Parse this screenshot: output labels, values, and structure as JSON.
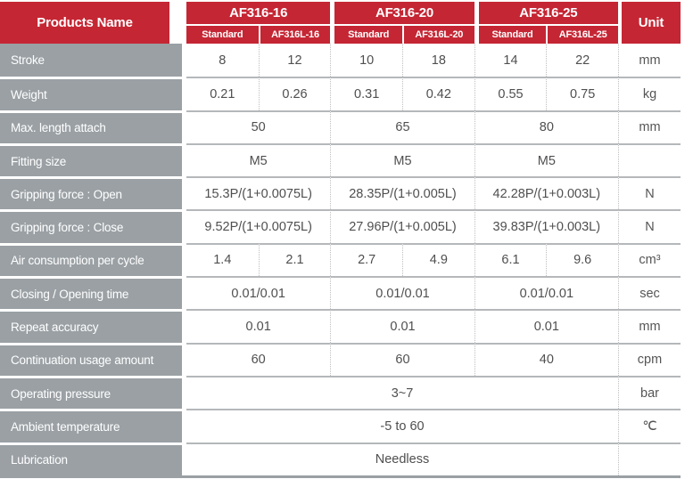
{
  "header": {
    "products_name": "Products Name",
    "unit": "Unit",
    "groups": [
      {
        "label": "AF316-16",
        "sub": [
          "Standard",
          "AF316L-16"
        ]
      },
      {
        "label": "AF316-20",
        "sub": [
          "Standard",
          "AF316L-20"
        ]
      },
      {
        "label": "AF316-25",
        "sub": [
          "Standard",
          "AF316L-25"
        ]
      }
    ]
  },
  "rows": [
    {
      "label": "Stroke",
      "span": "each",
      "values": [
        "8",
        "12",
        "10",
        "18",
        "14",
        "22"
      ],
      "unit": "mm"
    },
    {
      "label": "Weight",
      "span": "each",
      "values": [
        "0.21",
        "0.26",
        "0.31",
        "0.42",
        "0.55",
        "0.75"
      ],
      "unit": "kg"
    },
    {
      "label": "Max. length attach",
      "span": "group",
      "values": [
        "50",
        "65",
        "80"
      ],
      "unit": "mm"
    },
    {
      "label": "Fitting size",
      "span": "group",
      "values": [
        "M5",
        "M5",
        "M5"
      ],
      "unit": ""
    },
    {
      "label": "Gripping force : Open",
      "span": "group",
      "values": [
        "15.3P/(1+0.0075L)",
        "28.35P/(1+0.005L)",
        "42.28P/(1+0.003L)"
      ],
      "unit": "N"
    },
    {
      "label": "Gripping force : Close",
      "span": "group",
      "values": [
        "9.52P/(1+0.0075L)",
        "27.96P/(1+0.005L)",
        "39.83P/(1+0.003L)"
      ],
      "unit": "N"
    },
    {
      "label": "Air consumption per cycle",
      "span": "each",
      "values": [
        "1.4",
        "2.1",
        "2.7",
        "4.9",
        "6.1",
        "9.6"
      ],
      "unit": "cm³"
    },
    {
      "label": "Closing / Opening time",
      "span": "group",
      "values": [
        "0.01/0.01",
        "0.01/0.01",
        "0.01/0.01"
      ],
      "unit": "sec"
    },
    {
      "label": "Repeat accuracy",
      "span": "group",
      "values": [
        "0.01",
        "0.01",
        "0.01"
      ],
      "unit": "mm"
    },
    {
      "label": "Continuation usage amount",
      "span": "group",
      "values": [
        "60",
        "60",
        "40"
      ],
      "unit": "cpm"
    },
    {
      "label": "Operating pressure",
      "span": "full",
      "values": [
        "3~7"
      ],
      "unit": "bar"
    },
    {
      "label": "Ambient temperature",
      "span": "full",
      "values": [
        "-5 to 60"
      ],
      "unit": "℃"
    },
    {
      "label": "Lubrication",
      "span": "full",
      "values": [
        "Needless"
      ],
      "unit": ""
    }
  ],
  "colors": {
    "header_red": "#c52634",
    "label_gray": "#9aa0a4",
    "rule_gray": "#b5b8ba",
    "dotted_gray": "#bfbfbf",
    "data_text": "#4f4f4f"
  }
}
